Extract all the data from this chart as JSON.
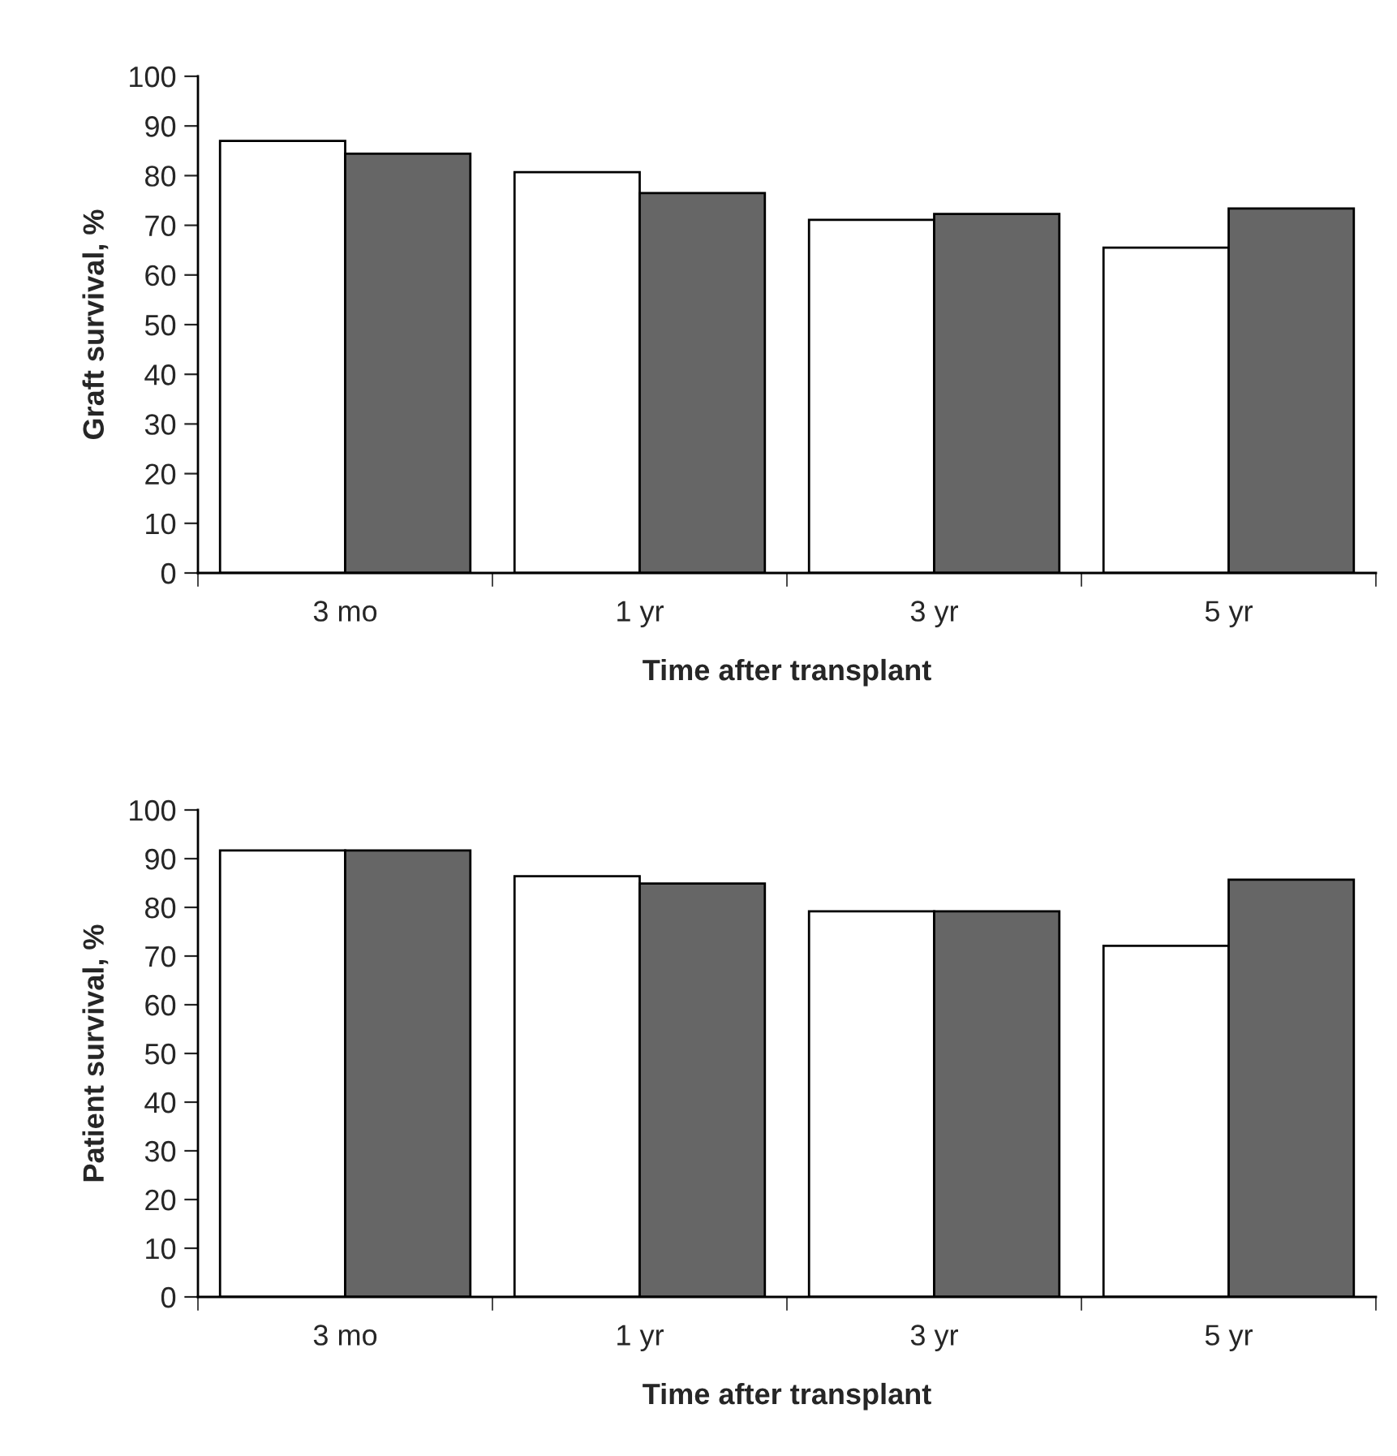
{
  "chart_data": [
    {
      "type": "bar",
      "xlabel": "Time after transplant",
      "ylabel": "Graft survival, %",
      "categories": [
        "3 mo",
        "1 yr",
        "3 yr",
        "5 yr"
      ],
      "series": [
        {
          "color": "#ffffff",
          "values": [
            87,
            80.7,
            71.1,
            65.5
          ]
        },
        {
          "color": "#666666",
          "values": [
            84.4,
            76.5,
            72.3,
            73.4
          ]
        }
      ],
      "ylim": [
        0,
        100
      ],
      "yticks": [
        0,
        10,
        20,
        30,
        40,
        50,
        60,
        70,
        80,
        90,
        100
      ],
      "grid": false,
      "legend": false
    },
    {
      "type": "bar",
      "xlabel": "Time after transplant",
      "ylabel": "Patient survival, %",
      "categories": [
        "3 mo",
        "1 yr",
        "3 yr",
        "5 yr"
      ],
      "series": [
        {
          "color": "#ffffff",
          "values": [
            91.7,
            86.4,
            79.2,
            72.1
          ]
        },
        {
          "color": "#666666",
          "values": [
            91.7,
            84.9,
            79.2,
            85.7
          ]
        }
      ],
      "ylim": [
        0,
        100
      ],
      "yticks": [
        0,
        10,
        20,
        30,
        40,
        50,
        60,
        70,
        80,
        90,
        100
      ],
      "grid": false,
      "legend": false
    }
  ]
}
